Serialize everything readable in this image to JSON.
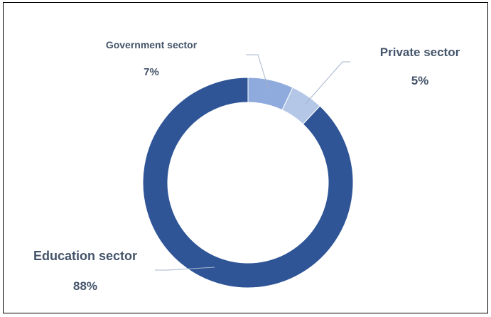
{
  "chart_data": {
    "type": "pie",
    "donut": true,
    "slices": [
      {
        "label": "Government sector",
        "value": 7,
        "value_label": "7%",
        "color": "#8faadc"
      },
      {
        "label": "Private sector",
        "value": 5,
        "value_label": "5%",
        "color": "#b4c7e7"
      },
      {
        "label": "Education sector",
        "value": 88,
        "value_label": "88%",
        "color": "#2f5597"
      }
    ],
    "legend": "none",
    "label_color": "#44546a",
    "leader_line_color": "#a6b5cc"
  }
}
